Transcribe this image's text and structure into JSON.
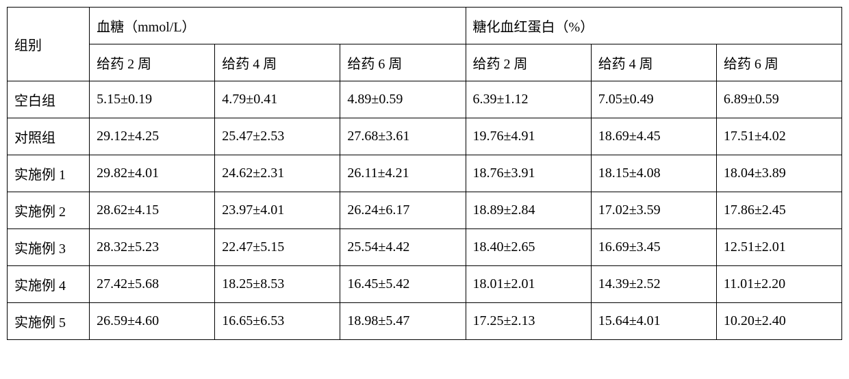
{
  "table": {
    "background_color": "#ffffff",
    "border_color": "#000000",
    "text_color": "#000000",
    "font_size": 20,
    "header": {
      "group_label": "组别",
      "section1_label": "血糖（mmol/L）",
      "section2_label": "糖化血红蛋白（%）",
      "sub1": "给药 2 周",
      "sub2": "给药 4 周",
      "sub3": "给药 6 周",
      "sub4": "给药 2 周",
      "sub5": "给药 4 周",
      "sub6": "给药 6 周"
    },
    "rows": [
      {
        "label": "空白组",
        "c1": "5.15±0.19",
        "c2": "4.79±0.41",
        "c3": "4.89±0.59",
        "c4": "6.39±1.12",
        "c5": "7.05±0.49",
        "c6": "6.89±0.59"
      },
      {
        "label": "对照组",
        "c1": "29.12±4.25",
        "c2": "25.47±2.53",
        "c3": "27.68±3.61",
        "c4": "19.76±4.91",
        "c5": "18.69±4.45",
        "c6": "17.51±4.02"
      },
      {
        "label": "实施例 1",
        "c1": "29.82±4.01",
        "c2": "24.62±2.31",
        "c3": "26.11±4.21",
        "c4": "18.76±3.91",
        "c5": "18.15±4.08",
        "c6": "18.04±3.89"
      },
      {
        "label": "实施例 2",
        "c1": "28.62±4.15",
        "c2": "23.97±4.01",
        "c3": "26.24±6.17",
        "c4": "18.89±2.84",
        "c5": "17.02±3.59",
        "c6": "17.86±2.45"
      },
      {
        "label": "实施例 3",
        "c1": "28.32±5.23",
        "c2": "22.47±5.15",
        "c3": "25.54±4.42",
        "c4": "18.40±2.65",
        "c5": "16.69±3.45",
        "c6": "12.51±2.01"
      },
      {
        "label": "实施例 4",
        "c1": "27.42±5.68",
        "c2": "18.25±8.53",
        "c3": "16.45±5.42",
        "c4": "18.01±2.01",
        "c5": "14.39±2.52",
        "c6": "11.01±2.20"
      },
      {
        "label": "实施例 5",
        "c1": "26.59±4.60",
        "c2": "16.65±6.53",
        "c3": "18.98±5.47",
        "c4": "17.25±2.13",
        "c5": "15.64±4.01",
        "c6": "10.20±2.40"
      }
    ]
  }
}
